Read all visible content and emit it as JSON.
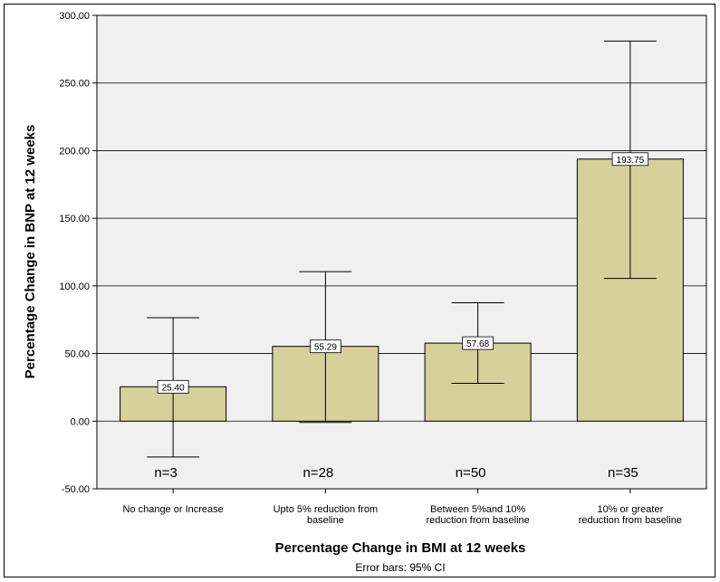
{
  "chart_data": {
    "type": "bar",
    "categories": [
      [
        "No change or Increase"
      ],
      [
        "Upto 5% reduction from",
        "baseline"
      ],
      [
        "Between 5%and 10%",
        "reduction from baseline"
      ],
      [
        "10% or greater",
        "reduction from baseline"
      ]
    ],
    "values": [
      25.4,
      55.29,
      57.68,
      193.75
    ],
    "value_labels": [
      "25.40",
      "55.29",
      "57.68",
      "193.75"
    ],
    "error_bars": {
      "lower": [
        -26.5,
        -1.0,
        28.0,
        105.5
      ],
      "upper": [
        76.5,
        110.5,
        87.5,
        281.0
      ]
    },
    "n_labels": [
      "n=3",
      "n=28",
      "n=50",
      "n=35"
    ],
    "yticks": [
      "-50.00",
      "0.00",
      "50.00",
      "100.00",
      "150.00",
      "200.00",
      "250.00",
      "300.00"
    ],
    "ylim": [
      -50,
      300
    ],
    "xlabel": "Percentage Change in BMI at 12 weeks",
    "ylabel": "Percentage Change in BNP at 12 weeks",
    "footnote": "Error bars: 95% CI",
    "grid": true,
    "colors": {
      "bar": "#d6d09a",
      "plot_bg": "#f0f0f0",
      "grid": "#000000"
    }
  }
}
